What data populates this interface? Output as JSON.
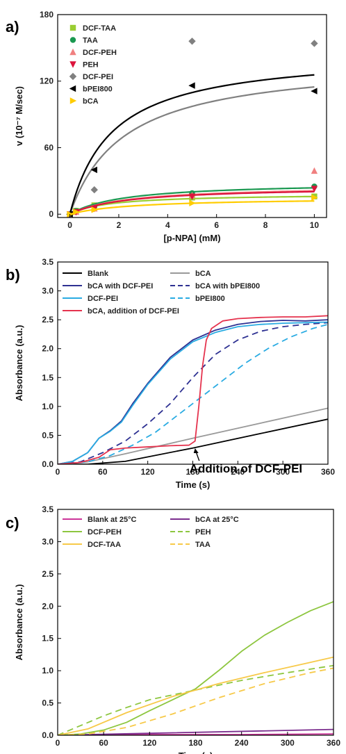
{
  "chart_data": [
    {
      "panel": "a)",
      "type": "scatter",
      "xlabel": "[p-NPA] (mM)",
      "ylabel": "v (10⁻⁷ M/sec)",
      "xlim": [
        -0.5,
        10.5
      ],
      "ylim": [
        -3,
        180
      ],
      "xticks": [
        0,
        2,
        4,
        6,
        8,
        10
      ],
      "yticks": [
        0,
        60,
        120,
        180
      ],
      "grid": false,
      "legend_position": "top-left",
      "series": [
        {
          "name": "DCF-TAA",
          "marker": "square",
          "color": "#9acd32",
          "points": [
            [
              0,
              0
            ],
            [
              0.25,
              3
            ],
            [
              1,
              8
            ],
            [
              5,
              15
            ],
            [
              10,
              16
            ]
          ],
          "fit": {
            "vmax": 18.5,
            "km": 1.6
          }
        },
        {
          "name": "TAA",
          "marker": "circle",
          "color": "#1a9850",
          "points": [
            [
              0,
              0
            ],
            [
              0.25,
              3
            ],
            [
              1,
              7
            ],
            [
              5,
              19
            ],
            [
              10,
              25
            ]
          ],
          "fit": {
            "vmax": 29,
            "km": 2.2
          }
        },
        {
          "name": "DCF-PEH",
          "marker": "triangle-up",
          "color": "#f08080",
          "points": [
            [
              0,
              0
            ],
            [
              0.25,
              2
            ],
            [
              1,
              5
            ],
            [
              5,
              17
            ],
            [
              10,
              39
            ]
          ],
          "fit": {
            "vmax": 26,
            "km": 2.3
          }
        },
        {
          "name": "PEH",
          "marker": "triangle-down",
          "color": "#dc143c",
          "points": [
            [
              0,
              0
            ],
            [
              0.25,
              2
            ],
            [
              1,
              5
            ],
            [
              5,
              16
            ],
            [
              10,
              23
            ]
          ],
          "fit": {
            "vmax": 25,
            "km": 2.3
          }
        },
        {
          "name": "DCF-PEI",
          "marker": "diamond",
          "color": "#808080",
          "points": [
            [
              0,
              0
            ],
            [
              1,
              22
            ],
            [
              5,
              156
            ],
            [
              10,
              154
            ]
          ],
          "fit": {
            "vmax": 140,
            "km": 2.2
          }
        },
        {
          "name": "bPEI800",
          "marker": "triangle-left",
          "color": "#000000",
          "points": [
            [
              0,
              0
            ],
            [
              1,
              40
            ],
            [
              5,
              116
            ],
            [
              10,
              111
            ]
          ],
          "fit": {
            "vmax": 147,
            "km": 1.7
          }
        },
        {
          "name": "bCA",
          "marker": "triangle-right",
          "color": "#ffcc00",
          "points": [
            [
              0,
              0
            ],
            [
              0.25,
              2
            ],
            [
              1,
              4
            ],
            [
              5,
              10
            ],
            [
              10,
              15
            ]
          ],
          "fit": {
            "vmax": 15,
            "km": 2.6
          }
        }
      ]
    },
    {
      "panel": "b)",
      "type": "line",
      "xlabel": "Time (s)",
      "ylabel": "Absorbance (a.u.)",
      "xlim": [
        0,
        360
      ],
      "ylim": [
        0,
        3.5
      ],
      "xticks": [
        0,
        60,
        120,
        180,
        240,
        300,
        360
      ],
      "yticks": [
        0.0,
        0.5,
        1.0,
        1.5,
        2.0,
        2.5,
        3.0,
        3.5
      ],
      "grid": false,
      "legend_position": "top-left",
      "annotation": {
        "text": "Addition of DCF-PEI",
        "x": 183,
        "y": 0.3
      },
      "series": [
        {
          "name": "Blank",
          "color": "#000000",
          "dash": "solid",
          "points": [
            [
              0,
              0
            ],
            [
              40,
              0
            ],
            [
              90,
              0.05
            ],
            [
              180,
              0.28
            ],
            [
              270,
              0.53
            ],
            [
              360,
              0.78
            ]
          ]
        },
        {
          "name": "bCA",
          "color": "#999999",
          "dash": "solid",
          "points": [
            [
              0,
              0
            ],
            [
              40,
              0.04
            ],
            [
              90,
              0.18
            ],
            [
              180,
              0.45
            ],
            [
              270,
              0.71
            ],
            [
              360,
              0.97
            ]
          ]
        },
        {
          "name": "bCA with DCF-PEI",
          "color": "#2e3192",
          "dash": "solid",
          "points": [
            [
              0,
              0
            ],
            [
              20,
              0.05
            ],
            [
              40,
              0.2
            ],
            [
              55,
              0.45
            ],
            [
              70,
              0.58
            ],
            [
              85,
              0.75
            ],
            [
              100,
              1.05
            ],
            [
              120,
              1.4
            ],
            [
              150,
              1.85
            ],
            [
              180,
              2.15
            ],
            [
              210,
              2.32
            ],
            [
              240,
              2.42
            ],
            [
              270,
              2.47
            ],
            [
              300,
              2.49
            ],
            [
              330,
              2.48
            ],
            [
              360,
              2.5
            ]
          ]
        },
        {
          "name": "bCA with bPEI800",
          "color": "#2e3192",
          "dash": "dashed",
          "points": [
            [
              0,
              0
            ],
            [
              30,
              0.04
            ],
            [
              60,
              0.2
            ],
            [
              90,
              0.4
            ],
            [
              120,
              0.7
            ],
            [
              150,
              1.05
            ],
            [
              180,
              1.5
            ],
            [
              210,
              1.9
            ],
            [
              240,
              2.15
            ],
            [
              270,
              2.3
            ],
            [
              300,
              2.38
            ],
            [
              330,
              2.42
            ],
            [
              360,
              2.45
            ]
          ]
        },
        {
          "name": "DCF-PEI",
          "color": "#29abe2",
          "dash": "solid",
          "points": [
            [
              0,
              0
            ],
            [
              20,
              0.05
            ],
            [
              40,
              0.2
            ],
            [
              55,
              0.45
            ],
            [
              70,
              0.57
            ],
            [
              85,
              0.73
            ],
            [
              100,
              1.02
            ],
            [
              120,
              1.38
            ],
            [
              150,
              1.82
            ],
            [
              180,
              2.12
            ],
            [
              210,
              2.28
            ],
            [
              240,
              2.38
            ],
            [
              270,
              2.42
            ],
            [
              300,
              2.44
            ],
            [
              330,
              2.45
            ],
            [
              360,
              2.46
            ]
          ]
        },
        {
          "name": "bPEI800",
          "color": "#29abe2",
          "dash": "dashed",
          "points": [
            [
              0,
              0
            ],
            [
              40,
              0.04
            ],
            [
              70,
              0.15
            ],
            [
              100,
              0.33
            ],
            [
              130,
              0.55
            ],
            [
              160,
              0.85
            ],
            [
              190,
              1.15
            ],
            [
              220,
              1.45
            ],
            [
              250,
              1.75
            ],
            [
              280,
              2.0
            ],
            [
              310,
              2.2
            ],
            [
              340,
              2.35
            ],
            [
              360,
              2.42
            ]
          ]
        },
        {
          "name": "bCA, addition of DCF-PEI",
          "color": "#e5334e",
          "dash": "solid",
          "points": [
            [
              0,
              0
            ],
            [
              30,
              0.03
            ],
            [
              55,
              0.12
            ],
            [
              70,
              0.25
            ],
            [
              90,
              0.28
            ],
            [
              120,
              0.3
            ],
            [
              150,
              0.32
            ],
            [
              175,
              0.33
            ],
            [
              183,
              0.4
            ],
            [
              188,
              1.0
            ],
            [
              193,
              1.7
            ],
            [
              198,
              2.15
            ],
            [
              205,
              2.35
            ],
            [
              220,
              2.48
            ],
            [
              240,
              2.52
            ],
            [
              270,
              2.54
            ],
            [
              300,
              2.55
            ],
            [
              330,
              2.55
            ],
            [
              360,
              2.57
            ]
          ]
        }
      ]
    },
    {
      "panel": "c)",
      "type": "line",
      "xlabel": "Time (s)",
      "ylabel": "Absorbance (a.u.)",
      "xlim": [
        0,
        360
      ],
      "ylim": [
        0,
        3.5
      ],
      "xticks": [
        0,
        60,
        120,
        180,
        240,
        300,
        360
      ],
      "yticks": [
        0.0,
        0.5,
        1.0,
        1.5,
        2.0,
        2.5,
        3.0,
        3.5
      ],
      "grid": false,
      "legend_position": "top-left",
      "series": [
        {
          "name": "Blank at 25°C",
          "color": "#cc3399",
          "dash": "solid",
          "points": [
            [
              0,
              0
            ],
            [
              120,
              0.01
            ],
            [
              240,
              0.01
            ],
            [
              360,
              0.02
            ]
          ]
        },
        {
          "name": "bCA at 25°C",
          "color": "#7b2d8e",
          "dash": "solid",
          "points": [
            [
              0,
              0
            ],
            [
              120,
              0.03
            ],
            [
              240,
              0.06
            ],
            [
              360,
              0.09
            ]
          ]
        },
        {
          "name": "DCF-PEH",
          "color": "#8dc63f",
          "dash": "solid",
          "points": [
            [
              0,
              0
            ],
            [
              30,
              0.02
            ],
            [
              60,
              0.08
            ],
            [
              90,
              0.2
            ],
            [
              120,
              0.38
            ],
            [
              150,
              0.55
            ],
            [
              180,
              0.72
            ],
            [
              210,
              1.0
            ],
            [
              240,
              1.3
            ],
            [
              270,
              1.55
            ],
            [
              300,
              1.75
            ],
            [
              330,
              1.93
            ],
            [
              360,
              2.07
            ]
          ]
        },
        {
          "name": "PEH",
          "color": "#8dc63f",
          "dash": "dashed",
          "points": [
            [
              0,
              0
            ],
            [
              30,
              0.15
            ],
            [
              60,
              0.3
            ],
            [
              90,
              0.43
            ],
            [
              120,
              0.55
            ],
            [
              180,
              0.7
            ],
            [
              240,
              0.85
            ],
            [
              300,
              0.97
            ],
            [
              360,
              1.08
            ]
          ]
        },
        {
          "name": "DCF-TAA",
          "color": "#f7c948",
          "dash": "solid",
          "points": [
            [
              0,
              0
            ],
            [
              40,
              0.1
            ],
            [
              90,
              0.35
            ],
            [
              150,
              0.6
            ],
            [
              210,
              0.8
            ],
            [
              270,
              0.97
            ],
            [
              330,
              1.13
            ],
            [
              360,
              1.21
            ]
          ]
        },
        {
          "name": "TAA",
          "color": "#f7c948",
          "dash": "dashed",
          "points": [
            [
              0,
              0
            ],
            [
              40,
              0.02
            ],
            [
              90,
              0.12
            ],
            [
              150,
              0.33
            ],
            [
              210,
              0.58
            ],
            [
              270,
              0.8
            ],
            [
              330,
              0.97
            ],
            [
              360,
              1.04
            ]
          ]
        }
      ]
    }
  ]
}
